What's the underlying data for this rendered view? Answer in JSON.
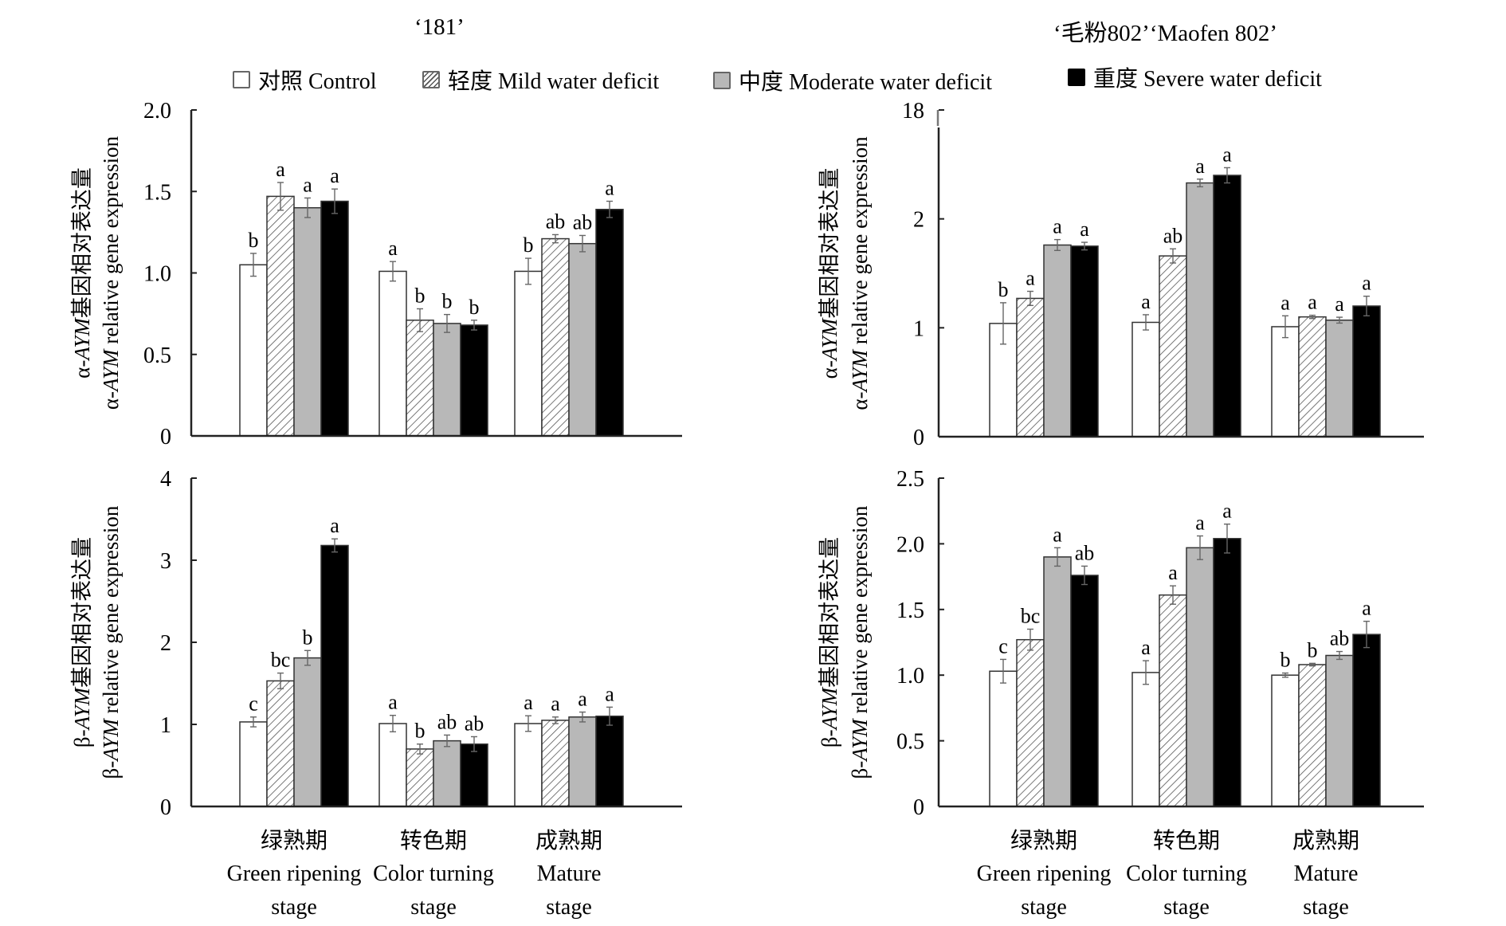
{
  "titles": {
    "left": "‘181’",
    "right": "‘毛粉802’‘Maofen 802’"
  },
  "legend": [
    {
      "label": "对照 Control",
      "pattern": "white"
    },
    {
      "label": "轻度 Mild water deficit",
      "pattern": "hatch"
    },
    {
      "label": "中度 Moderate water deficit",
      "pattern": "gray"
    },
    {
      "label": "重度 Severe water deficit",
      "pattern": "black"
    }
  ],
  "colors": {
    "control": "#ffffff",
    "mild_hatch": "#555555",
    "moderate": "#b8b8b8",
    "severe": "#000000",
    "axis": "#222222",
    "error_bar": "#666666"
  },
  "chart_data": [
    {
      "id": "alpha-181",
      "type": "bar",
      "cultivar": "‘181’",
      "title": "",
      "ylabel_cn": "α-AYM基因相对表达量",
      "ylabel_en": "α-AYM relative gene expression",
      "ylabel_parts": {
        "prefix": "α-",
        "gene": "AYM",
        "cn_suffix": "基因相对表达量",
        "en_suffix": " relative gene expression"
      },
      "ylim": [
        0,
        2.0
      ],
      "yticks": [
        0,
        0.5,
        1.0,
        1.5,
        2.0
      ],
      "ytick_labels": [
        "0",
        "0.5",
        "1.0",
        "1.5",
        "2.0"
      ],
      "categories": [
        "Green ripening stage",
        "Color turning stage",
        "Mature stage"
      ],
      "series": [
        {
          "name": "对照 Control",
          "values": [
            1.05,
            1.01,
            1.01
          ],
          "errors": [
            0.07,
            0.06,
            0.08
          ],
          "letters": [
            "b",
            "a",
            "b"
          ]
        },
        {
          "name": "轻度 Mild water deficit",
          "values": [
            1.47,
            0.71,
            1.21
          ],
          "errors": [
            0.085,
            0.07,
            0.025
          ],
          "letters": [
            "a",
            "b",
            "ab"
          ]
        },
        {
          "name": "中度 Moderate water deficit",
          "values": [
            1.4,
            0.69,
            1.18
          ],
          "errors": [
            0.06,
            0.055,
            0.05
          ],
          "letters": [
            "a",
            "b",
            "ab"
          ]
        },
        {
          "name": "重度 Severe water deficit",
          "values": [
            1.44,
            0.68,
            1.39
          ],
          "errors": [
            0.075,
            0.03,
            0.05
          ],
          "letters": [
            "a",
            "b",
            "a"
          ]
        }
      ]
    },
    {
      "id": "alpha-maofen802",
      "type": "bar",
      "cultivar": "‘毛粉802’‘Maofen 802’",
      "title": "",
      "ylabel_cn": "α-AYM基因相对表达量",
      "ylabel_en": "α-AYM relative gene expression",
      "ylabel_parts": {
        "prefix": "α-",
        "gene": "AYM",
        "cn_suffix": "基因相对表达量",
        "en_suffix": " relative gene expression"
      },
      "ylim": [
        0,
        3
      ],
      "axis_break": true,
      "yticks": [
        0,
        1,
        2,
        3
      ],
      "ytick_labels": [
        "0",
        "1",
        "2",
        "18"
      ],
      "categories": [
        "Green ripening stage",
        "Color turning stage",
        "Mature stage"
      ],
      "series": [
        {
          "name": "对照 Control",
          "values": [
            1.04,
            1.05,
            1.01
          ],
          "errors": [
            0.19,
            0.07,
            0.1
          ],
          "letters": [
            "b",
            "a",
            "a"
          ]
        },
        {
          "name": "轻度 Mild water deficit",
          "values": [
            1.27,
            1.66,
            1.1
          ],
          "errors": [
            0.065,
            0.065,
            0.015
          ],
          "letters": [
            "a",
            "ab",
            "a"
          ]
        },
        {
          "name": "中度 Moderate water deficit",
          "values": [
            1.76,
            2.33,
            1.07
          ],
          "errors": [
            0.05,
            0.035,
            0.027
          ],
          "letters": [
            "a",
            "a",
            "a"
          ]
        },
        {
          "name": "重度 Severe water deficit",
          "values": [
            1.75,
            2.4,
            1.2
          ],
          "errors": [
            0.035,
            0.07,
            0.09
          ],
          "letters": [
            "a",
            "a",
            "a"
          ]
        }
      ]
    },
    {
      "id": "beta-181",
      "type": "bar",
      "cultivar": "‘181’",
      "title": "",
      "ylabel_cn": "β-AYM基因相对表达量",
      "ylabel_en": "β-AYM relative gene expression",
      "ylabel_parts": {
        "prefix": "β-",
        "gene": "AYM",
        "cn_suffix": "基因相对表达量",
        "en_suffix": " relative gene expression"
      },
      "ylim": [
        0,
        4
      ],
      "yticks": [
        0,
        1,
        2,
        3,
        4
      ],
      "ytick_labels": [
        "0",
        "1",
        "2",
        "3",
        "4"
      ],
      "categories": [
        "Green ripening stage",
        "Color turning stage",
        "Mature stage"
      ],
      "series": [
        {
          "name": "对照 Control",
          "values": [
            1.03,
            1.01,
            1.01
          ],
          "errors": [
            0.06,
            0.1,
            0.095
          ],
          "letters": [
            "c",
            "a",
            "a"
          ]
        },
        {
          "name": "轻度 Mild water deficit",
          "values": [
            1.53,
            0.7,
            1.05
          ],
          "errors": [
            0.095,
            0.06,
            0.04
          ],
          "letters": [
            "bc",
            "b",
            "a"
          ]
        },
        {
          "name": "中度 Moderate water deficit",
          "values": [
            1.81,
            0.8,
            1.09
          ],
          "errors": [
            0.09,
            0.07,
            0.06
          ],
          "letters": [
            "b",
            "ab",
            "a"
          ]
        },
        {
          "name": "重度 Severe water deficit",
          "values": [
            3.18,
            0.76,
            1.1
          ],
          "errors": [
            0.08,
            0.09,
            0.11
          ],
          "letters": [
            "a",
            "ab",
            "a"
          ]
        }
      ]
    },
    {
      "id": "beta-maofen802",
      "type": "bar",
      "cultivar": "‘毛粉802’‘Maofen 802’",
      "title": "",
      "ylabel_cn": "β-AYM基因相对表达量",
      "ylabel_en": "β-AYM relative gene expression",
      "ylabel_parts": {
        "prefix": "β-",
        "gene": "AYM",
        "cn_suffix": "基因相对表达量",
        "en_suffix": " relative gene expression"
      },
      "ylim": [
        0,
        2.5
      ],
      "yticks": [
        0,
        0.5,
        1.0,
        1.5,
        2.0,
        2.5
      ],
      "ytick_labels": [
        "0",
        "0.5",
        "1.0",
        "1.5",
        "2.0",
        "2.5"
      ],
      "categories": [
        "Green ripening stage",
        "Color turning stage",
        "Mature stage"
      ],
      "series": [
        {
          "name": "对照 Control",
          "values": [
            1.03,
            1.02,
            1.0
          ],
          "errors": [
            0.09,
            0.09,
            0.016
          ],
          "letters": [
            "c",
            "a",
            "b"
          ]
        },
        {
          "name": "轻度 Mild water deficit",
          "values": [
            1.27,
            1.61,
            1.08
          ],
          "errors": [
            0.08,
            0.07,
            0.01
          ],
          "letters": [
            "bc",
            "a",
            "b"
          ]
        },
        {
          "name": "中度 Moderate water deficit",
          "values": [
            1.9,
            1.97,
            1.15
          ],
          "errors": [
            0.07,
            0.09,
            0.03
          ],
          "letters": [
            "a",
            "a",
            "ab"
          ]
        },
        {
          "name": "重度 Severe water deficit",
          "values": [
            1.76,
            2.04,
            1.31
          ],
          "errors": [
            0.07,
            0.11,
            0.1
          ],
          "letters": [
            "ab",
            "a",
            "a"
          ]
        }
      ]
    }
  ],
  "xaxis_labels": [
    {
      "cn": "绿熟期",
      "en1": "Green ripening",
      "en2": "stage"
    },
    {
      "cn": "转色期",
      "en1": "Color turning",
      "en2": "stage"
    },
    {
      "cn": "成熟期",
      "en1": "Mature",
      "en2": "stage"
    }
  ]
}
